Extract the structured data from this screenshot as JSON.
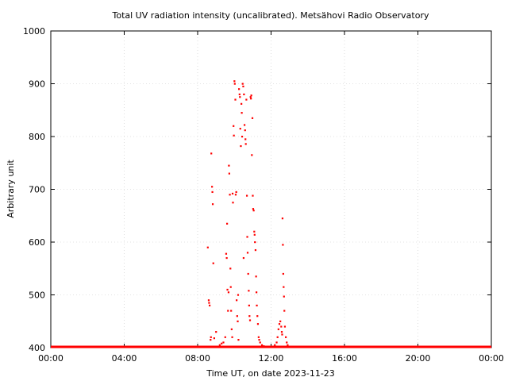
{
  "chart_data": {
    "type": "scatter",
    "title": "Total UV radiation intensity (uncalibrated). Metsähovi Radio Observatory",
    "xlabel": "Time UT, on date 2023-11-23",
    "ylabel": "Arbitrary unit",
    "x_unit": "hours",
    "xlim": [
      0,
      24
    ],
    "ylim": [
      400,
      1000
    ],
    "x_ticks": [
      {
        "value": 0,
        "label": "00:00"
      },
      {
        "value": 4,
        "label": "04:00"
      },
      {
        "value": 8,
        "label": "08:00"
      },
      {
        "value": 12,
        "label": "12:00"
      },
      {
        "value": 16,
        "label": "16:00"
      },
      {
        "value": 20,
        "label": "20:00"
      },
      {
        "value": 24,
        "label": "00:00"
      }
    ],
    "y_ticks": [
      {
        "value": 400,
        "label": "400"
      },
      {
        "value": 500,
        "label": "500"
      },
      {
        "value": 600,
        "label": "600"
      },
      {
        "value": 700,
        "label": "700"
      },
      {
        "value": 800,
        "label": "800"
      },
      {
        "value": 900,
        "label": "900"
      },
      {
        "value": 1000,
        "label": "1000"
      }
    ],
    "grid": true,
    "legend": "none",
    "series_color": "#ff0000",
    "baseline": {
      "x_start": 0,
      "x_end": 24,
      "y": 400
    },
    "points": [
      [
        8.55,
        590
      ],
      [
        8.6,
        490
      ],
      [
        8.62,
        485
      ],
      [
        8.65,
        480
      ],
      [
        8.7,
        415
      ],
      [
        8.72,
        420
      ],
      [
        8.74,
        768
      ],
      [
        8.78,
        705
      ],
      [
        8.8,
        695
      ],
      [
        8.82,
        672
      ],
      [
        8.85,
        560
      ],
      [
        8.9,
        418
      ],
      [
        9.0,
        430
      ],
      [
        9.2,
        405
      ],
      [
        9.3,
        408
      ],
      [
        9.4,
        410
      ],
      [
        9.5,
        420
      ],
      [
        9.55,
        578
      ],
      [
        9.58,
        570
      ],
      [
        9.6,
        635
      ],
      [
        9.62,
        510
      ],
      [
        9.65,
        470
      ],
      [
        9.68,
        505
      ],
      [
        9.7,
        745
      ],
      [
        9.72,
        730
      ],
      [
        9.75,
        690
      ],
      [
        9.78,
        550
      ],
      [
        9.8,
        515
      ],
      [
        9.82,
        470
      ],
      [
        9.85,
        435
      ],
      [
        9.88,
        420
      ],
      [
        9.9,
        692
      ],
      [
        9.92,
        675
      ],
      [
        9.95,
        820
      ],
      [
        9.97,
        802
      ],
      [
        10.0,
        905
      ],
      [
        10.02,
        900
      ],
      [
        10.05,
        870
      ],
      [
        10.07,
        690
      ],
      [
        10.1,
        695
      ],
      [
        10.12,
        490
      ],
      [
        10.15,
        460
      ],
      [
        10.18,
        450
      ],
      [
        10.2,
        500
      ],
      [
        10.22,
        415
      ],
      [
        10.25,
        890
      ],
      [
        10.28,
        880
      ],
      [
        10.3,
        875
      ],
      [
        10.32,
        815
      ],
      [
        10.35,
        782
      ],
      [
        10.38,
        862
      ],
      [
        10.4,
        845
      ],
      [
        10.42,
        800
      ],
      [
        10.45,
        900
      ],
      [
        10.48,
        895
      ],
      [
        10.5,
        570
      ],
      [
        10.52,
        880
      ],
      [
        10.55,
        822
      ],
      [
        10.58,
        812
      ],
      [
        10.6,
        795
      ],
      [
        10.62,
        786
      ],
      [
        10.65,
        870
      ],
      [
        10.68,
        688
      ],
      [
        10.7,
        610
      ],
      [
        10.72,
        580
      ],
      [
        10.75,
        540
      ],
      [
        10.78,
        508
      ],
      [
        10.8,
        480
      ],
      [
        10.82,
        460
      ],
      [
        10.85,
        452
      ],
      [
        10.88,
        875
      ],
      [
        10.9,
        872
      ],
      [
        10.92,
        878
      ],
      [
        10.95,
        765
      ],
      [
        10.98,
        835
      ],
      [
        11.0,
        688
      ],
      [
        11.02,
        663
      ],
      [
        11.05,
        660
      ],
      [
        11.08,
        620
      ],
      [
        11.1,
        614
      ],
      [
        11.12,
        600
      ],
      [
        11.15,
        585
      ],
      [
        11.18,
        535
      ],
      [
        11.2,
        505
      ],
      [
        11.22,
        480
      ],
      [
        11.25,
        460
      ],
      [
        11.28,
        445
      ],
      [
        11.32,
        420
      ],
      [
        11.35,
        415
      ],
      [
        11.4,
        410
      ],
      [
        11.5,
        405
      ],
      [
        11.6,
        403
      ],
      [
        11.8,
        402
      ],
      [
        12.0,
        402
      ],
      [
        12.2,
        405
      ],
      [
        12.3,
        410
      ],
      [
        12.35,
        420
      ],
      [
        12.4,
        435
      ],
      [
        12.45,
        445
      ],
      [
        12.5,
        450
      ],
      [
        12.55,
        440
      ],
      [
        12.58,
        430
      ],
      [
        12.6,
        425
      ],
      [
        12.62,
        645
      ],
      [
        12.64,
        595
      ],
      [
        12.66,
        540
      ],
      [
        12.68,
        515
      ],
      [
        12.7,
        497
      ],
      [
        12.72,
        470
      ],
      [
        12.75,
        440
      ],
      [
        12.8,
        420
      ],
      [
        12.85,
        410
      ],
      [
        12.9,
        405
      ]
    ]
  }
}
